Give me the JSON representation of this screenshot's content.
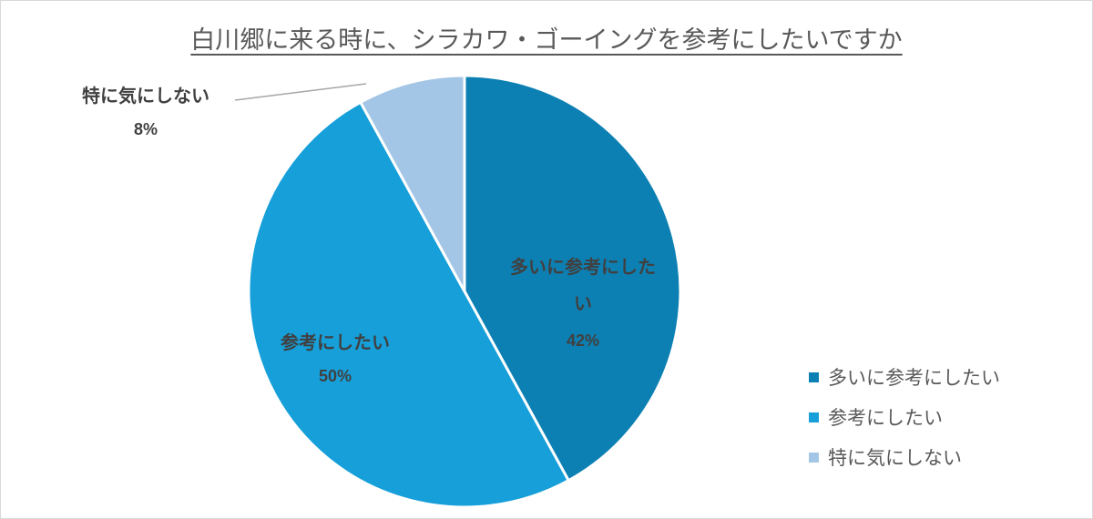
{
  "chart_data": {
    "type": "pie",
    "title": "白川郷に来る時に、シラカワ・ゴーイングを参考にしたいですか",
    "slices": [
      {
        "label": "多いに参考にしたい",
        "value": 42,
        "value_label": "42%",
        "color": "#0d80b3"
      },
      {
        "label": "参考にしたい",
        "value": 50,
        "value_label": "50%",
        "color": "#169fd9"
      },
      {
        "label": "特に気にしない",
        "value": 8,
        "value_label": "8%",
        "color": "#a4c6e6"
      }
    ],
    "legend_position": "bottom-right"
  }
}
